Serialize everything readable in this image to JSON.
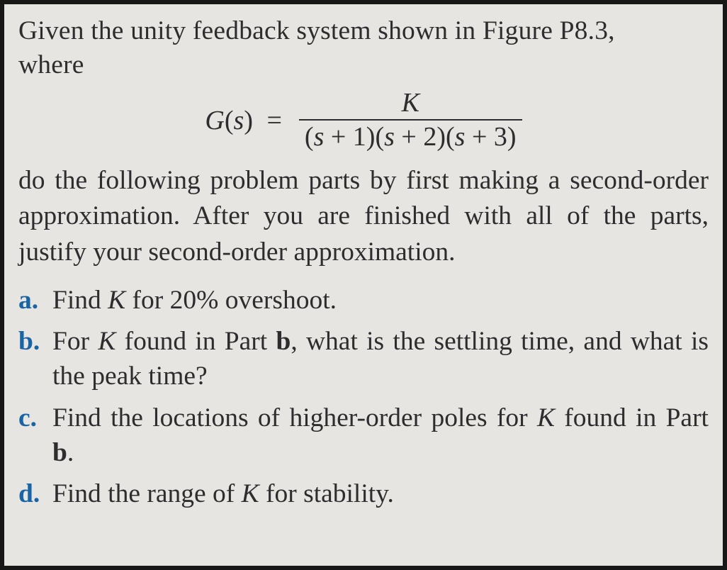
{
  "colors": {
    "page_background": "#e8e7e3",
    "outer_background": "#2a2a2a",
    "border": "#151515",
    "text": "#2b2b2d",
    "list_marker": "#1763a6"
  },
  "typography": {
    "family": "Times New Roman, serif",
    "body_fontsize_pt": 28,
    "line_height": 1.3
  },
  "intro_line1": "Given the unity feedback system shown in Figure P8.3,",
  "intro_line2": "where",
  "equation": {
    "lhs_G": "G",
    "lhs_open": "(",
    "lhs_s": "s",
    "lhs_close": ")",
    "equals": "=",
    "numerator": "K",
    "den_p1a": "(",
    "den_p1s": "s",
    "den_p1b": " + 1)",
    "den_p2a": "(",
    "den_p2s": "s",
    "den_p2b": " + 2)",
    "den_p3a": "(",
    "den_p3s": "s",
    "den_p3b": " + 3)"
  },
  "instructions": "do the following problem parts by first making a second-order approximation. After you are finished with all of the parts, justify your second-order approximation.",
  "parts": {
    "a": {
      "marker": "a.",
      "t1": "Find ",
      "K": "K",
      "t2": " for 20% overshoot."
    },
    "b": {
      "marker": "b.",
      "t1": "For ",
      "K": "K",
      "t2": " found in Part ",
      "bold_b": "b",
      "t3": ", what is the settling time, and what is the peak time?"
    },
    "c": {
      "marker": "c.",
      "t1": "Find the locations of higher-order poles for ",
      "K": "K",
      "t2": " found in Part ",
      "bold_b": "b",
      "t3": "."
    },
    "d": {
      "marker": "d.",
      "t1": "Find the range of ",
      "K": "K",
      "t2": " for stability."
    }
  }
}
